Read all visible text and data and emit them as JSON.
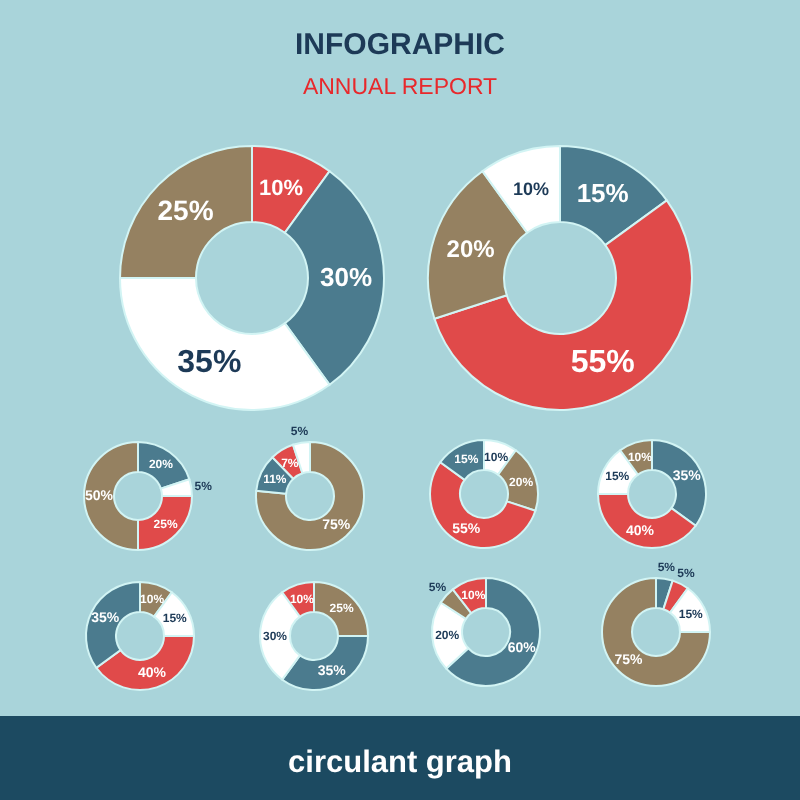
{
  "chart_data": [
    {
      "type": "donut",
      "title": "INFOGRAPHIC",
      "subtitle": "ANNUAL REPORT",
      "annotations": [
        "circulant graph"
      ],
      "categories": [
        null,
        null,
        null,
        null
      ],
      "values": [
        10,
        30,
        35,
        25
      ],
      "colors": [
        "#e04a4a",
        "#4b7b8e",
        "#ffffff",
        "#958161"
      ],
      "value_labels": [
        "10%",
        "30%",
        "35%",
        "25%"
      ]
    },
    {
      "type": "donut",
      "categories": [
        null,
        null,
        null,
        null
      ],
      "values": [
        15,
        55,
        20,
        10
      ],
      "colors": [
        "#4b7b8e",
        "#e04a4a",
        "#958161",
        "#ffffff"
      ],
      "value_labels": [
        "15%",
        "55%",
        "20%",
        "10%"
      ]
    },
    {
      "type": "donut",
      "categories": [
        null,
        null,
        null,
        null
      ],
      "values": [
        20,
        5,
        25,
        50
      ],
      "colors": [
        "#4b7b8e",
        "#ffffff",
        "#e04a4a",
        "#958161"
      ],
      "value_labels": [
        "20%",
        "5%",
        "25%",
        "50%"
      ]
    },
    {
      "type": "donut",
      "categories": [
        null,
        null,
        null,
        null
      ],
      "values": [
        75,
        11,
        7,
        5
      ],
      "colors": [
        "#958161",
        "#4b7b8e",
        "#e04a4a",
        "#ffffff"
      ],
      "value_labels": [
        "75%",
        "11%",
        "7%",
        "5%"
      ]
    },
    {
      "type": "donut",
      "categories": [
        null,
        null,
        null,
        null
      ],
      "values": [
        10,
        20,
        55,
        15
      ],
      "colors": [
        "#ffffff",
        "#958161",
        "#e04a4a",
        "#4b7b8e"
      ],
      "value_labels": [
        "10%",
        "20%",
        "55%",
        "15%"
      ]
    },
    {
      "type": "donut",
      "categories": [
        null,
        null,
        null,
        null
      ],
      "values": [
        35,
        40,
        15,
        10
      ],
      "colors": [
        "#4b7b8e",
        "#e04a4a",
        "#ffffff",
        "#958161"
      ],
      "value_labels": [
        "35%",
        "40%",
        "15%",
        "10%"
      ]
    },
    {
      "type": "donut",
      "categories": [
        null,
        null,
        null,
        null
      ],
      "values": [
        10,
        15,
        40,
        35
      ],
      "colors": [
        "#958161",
        "#ffffff",
        "#e04a4a",
        "#4b7b8e"
      ],
      "value_labels": [
        "10%",
        "15%",
        "40%",
        "35%"
      ]
    },
    {
      "type": "donut",
      "categories": [
        null,
        null,
        null,
        null
      ],
      "values": [
        25,
        35,
        30,
        10
      ],
      "colors": [
        "#958161",
        "#4b7b8e",
        "#ffffff",
        "#e04a4a"
      ],
      "value_labels": [
        "25%",
        "35%",
        "30%",
        "10%"
      ]
    },
    {
      "type": "donut",
      "categories": [
        null,
        null,
        null,
        null
      ],
      "values": [
        60,
        20,
        5,
        10
      ],
      "colors": [
        "#4b7b8e",
        "#ffffff",
        "#958161",
        "#e04a4a"
      ],
      "value_labels": [
        "60%",
        "20%",
        "5%",
        "10%"
      ]
    },
    {
      "type": "donut",
      "categories": [
        null,
        null,
        null,
        null
      ],
      "values": [
        5,
        5,
        15,
        75
      ],
      "colors": [
        "#4b7b8e",
        "#e04a4a",
        "#ffffff",
        "#958161"
      ],
      "value_labels": [
        "5%",
        "5%",
        "15%",
        "75%"
      ]
    }
  ]
}
